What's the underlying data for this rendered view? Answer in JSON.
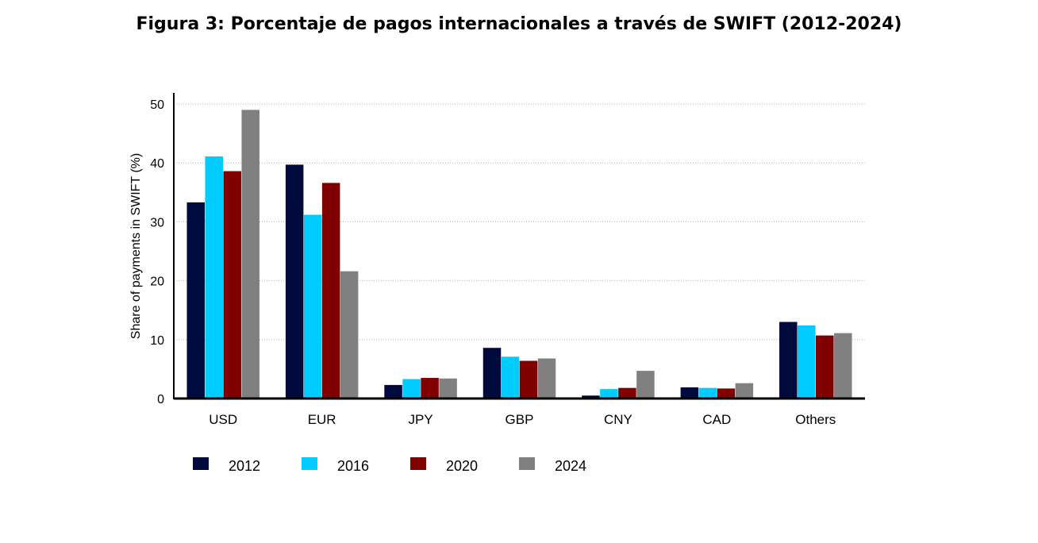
{
  "title": "Figura 3: Porcentaje de pagos internacionales a través de SWIFT (2012-2024)",
  "chart_data": {
    "type": "bar",
    "ylabel": "Share of payments in SWIFT (%)",
    "xlabel": "",
    "ylim": [
      0,
      50
    ],
    "yticks": [
      0,
      10,
      20,
      30,
      40,
      50
    ],
    "grid": true,
    "legend_position": "bottom-left",
    "categories": [
      "USD",
      "EUR",
      "JPY",
      "GBP",
      "CNY",
      "CAD",
      "Others"
    ],
    "series": [
      {
        "name": "2012",
        "color": "#000a3d",
        "values": [
          33.3,
          39.7,
          2.3,
          8.6,
          0.5,
          1.9,
          13.0
        ]
      },
      {
        "name": "2016",
        "color": "#00ccff",
        "values": [
          41.1,
          31.2,
          3.3,
          7.1,
          1.6,
          1.8,
          12.4
        ]
      },
      {
        "name": "2020",
        "color": "#800000",
        "values": [
          38.6,
          36.6,
          3.5,
          6.4,
          1.8,
          1.7,
          10.7
        ]
      },
      {
        "name": "2024",
        "color": "#808080",
        "values": [
          49.0,
          21.6,
          3.4,
          6.8,
          4.7,
          2.6,
          11.1
        ]
      }
    ]
  }
}
